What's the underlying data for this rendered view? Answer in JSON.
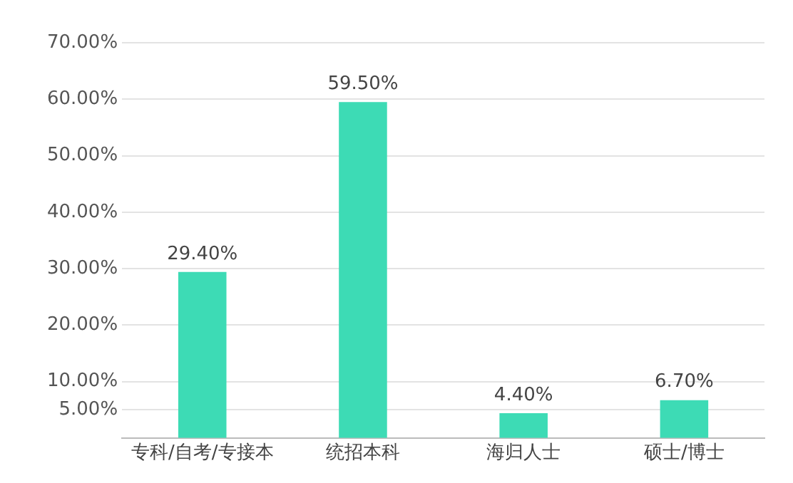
{
  "chart_data": {
    "type": "bar",
    "categories": [
      "专科/自考/专接本",
      "统招本科",
      "海归人士",
      "硕士/博士"
    ],
    "values": [
      29.4,
      59.5,
      4.4,
      6.7
    ],
    "color": "#3ddbb5",
    "value_labels": [
      "29.40%",
      "59.50%",
      "4.40%",
      "6.70%"
    ],
    "ylim": [
      0,
      70
    ],
    "yticks": [
      {
        "value": 5,
        "label": "5.00%"
      },
      {
        "value": 10,
        "label": "10.00%"
      },
      {
        "value": 20,
        "label": "20.00%"
      },
      {
        "value": 30,
        "label": "30.00%"
      },
      {
        "value": 40,
        "label": "40.00%"
      },
      {
        "value": 50,
        "label": "50.00%"
      },
      {
        "value": 60,
        "label": "60.00%"
      },
      {
        "value": 70,
        "label": "70.00%"
      }
    ],
    "grid": "y",
    "legend": false
  }
}
